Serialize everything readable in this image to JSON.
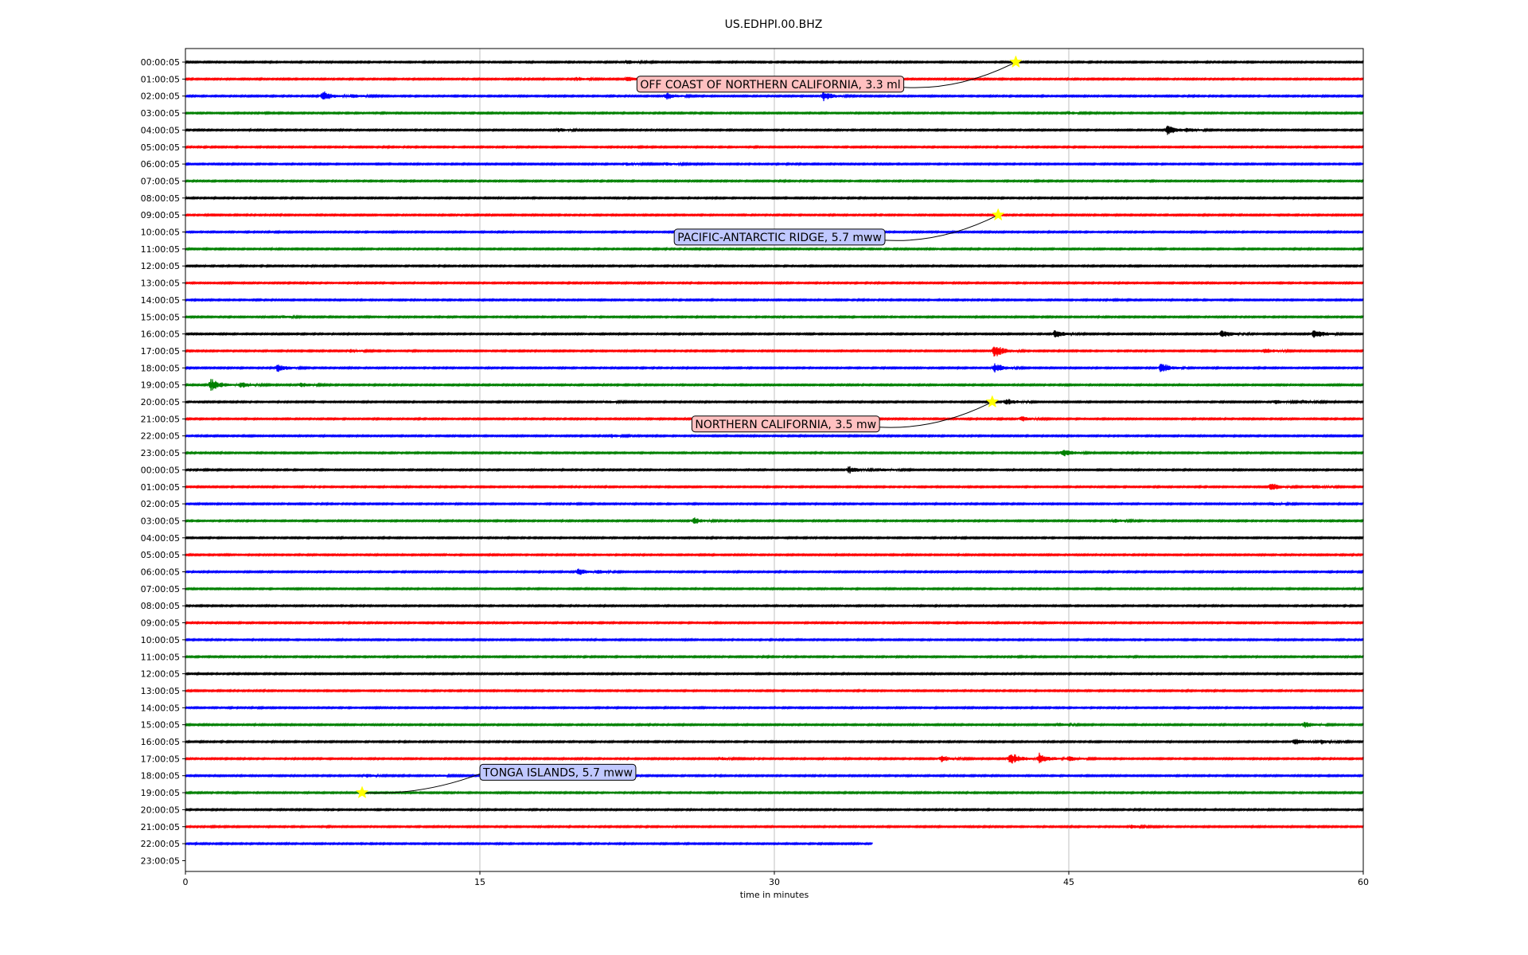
{
  "chart_data": {
    "type": "line",
    "title": "US.EDHPI.00.BHZ",
    "xlabel": "time in minutes",
    "ylabel": "",
    "xlim": [
      0,
      60
    ],
    "x_ticks": [
      "0",
      "15",
      "30",
      "45",
      "60"
    ],
    "x_tick_values": [
      0,
      15,
      30,
      45,
      60
    ],
    "grid": "vertical",
    "trace_colors": [
      "#000000",
      "#ff0000",
      "#0000ff",
      "#008000"
    ],
    "row_labels": [
      "00:00:05",
      "01:00:05",
      "02:00:05",
      "03:00:05",
      "04:00:05",
      "05:00:05",
      "06:00:05",
      "07:00:05",
      "08:00:05",
      "09:00:05",
      "10:00:05",
      "11:00:05",
      "12:00:05",
      "13:00:05",
      "14:00:05",
      "15:00:05",
      "16:00:05",
      "17:00:05",
      "18:00:05",
      "19:00:05",
      "20:00:05",
      "21:00:05",
      "22:00:05",
      "23:00:05",
      "00:00:05",
      "01:00:05",
      "02:00:05",
      "03:00:05",
      "04:00:05",
      "05:00:05",
      "06:00:05",
      "07:00:05",
      "08:00:05",
      "09:00:05",
      "10:00:05",
      "11:00:05",
      "12:00:05",
      "13:00:05",
      "14:00:05",
      "15:00:05",
      "16:00:05",
      "17:00:05",
      "18:00:05",
      "19:00:05",
      "20:00:05",
      "21:00:05",
      "22:00:05",
      "23:00:05"
    ],
    "last_trace_end_minute": 35,
    "bursts": [
      {
        "row": 0,
        "minute": 22.5,
        "amp": 0.6
      },
      {
        "row": 1,
        "minute": 20,
        "amp": 0.6
      },
      {
        "row": 1,
        "minute": 22.5,
        "amp": 0.8
      },
      {
        "row": 2,
        "minute": 7,
        "amp": 1.6
      },
      {
        "row": 2,
        "minute": 8.5,
        "amp": 0.6
      },
      {
        "row": 2,
        "minute": 24.5,
        "amp": 1.0
      },
      {
        "row": 2,
        "minute": 32.5,
        "amp": 1.4
      },
      {
        "row": 3,
        "minute": 45,
        "amp": 0.5
      },
      {
        "row": 4,
        "minute": 19,
        "amp": 0.6
      },
      {
        "row": 4,
        "minute": 50,
        "amp": 1.6
      },
      {
        "row": 4,
        "minute": 51,
        "amp": 0.6
      },
      {
        "row": 6,
        "minute": 22.5,
        "amp": 0.5
      },
      {
        "row": 6,
        "minute": 24.5,
        "amp": 0.5
      },
      {
        "row": 15,
        "minute": 5,
        "amp": 0.4
      },
      {
        "row": 16,
        "minute": 44.3,
        "amp": 1.2
      },
      {
        "row": 16,
        "minute": 52.8,
        "amp": 1.2
      },
      {
        "row": 16,
        "minute": 57.5,
        "amp": 1.6
      },
      {
        "row": 17,
        "minute": 8.4,
        "amp": 0.6
      },
      {
        "row": 17,
        "minute": 41.2,
        "amp": 2.0
      },
      {
        "row": 17,
        "minute": 55,
        "amp": 0.8
      },
      {
        "row": 18,
        "minute": 4.7,
        "amp": 1.2
      },
      {
        "row": 18,
        "minute": 41.2,
        "amp": 1.6
      },
      {
        "row": 18,
        "minute": 49.7,
        "amp": 1.6
      },
      {
        "row": 19,
        "minute": 1.3,
        "amp": 2.0
      },
      {
        "row": 19,
        "minute": 2.8,
        "amp": 0.9
      },
      {
        "row": 19,
        "minute": 5.9,
        "amp": 0.7
      },
      {
        "row": 20,
        "minute": 21.4,
        "amp": 0.5
      },
      {
        "row": 20,
        "minute": 41.8,
        "amp": 1.1
      },
      {
        "row": 20,
        "minute": 55.5,
        "amp": 0.6
      },
      {
        "row": 20,
        "minute": 57,
        "amp": 0.5
      },
      {
        "row": 21,
        "minute": 42.6,
        "amp": 0.8
      },
      {
        "row": 22,
        "minute": 21.7,
        "amp": 0.6
      },
      {
        "row": 23,
        "minute": 44.7,
        "amp": 1.2
      },
      {
        "row": 24,
        "minute": 33.8,
        "amp": 1.2
      },
      {
        "row": 24,
        "minute": 35.5,
        "amp": 0.5
      },
      {
        "row": 25,
        "minute": 55.3,
        "amp": 1.2
      },
      {
        "row": 25,
        "minute": 57.5,
        "amp": 0.6
      },
      {
        "row": 26,
        "minute": 55.3,
        "amp": 0.6
      },
      {
        "row": 27,
        "minute": 25.9,
        "amp": 1.0
      },
      {
        "row": 27,
        "minute": 47.3,
        "amp": 0.7
      },
      {
        "row": 30,
        "minute": 20,
        "amp": 1.0
      },
      {
        "row": 30,
        "minute": 21,
        "amp": 0.5
      },
      {
        "row": 39,
        "minute": 57,
        "amp": 1.0
      },
      {
        "row": 39,
        "minute": 44.5,
        "amp": 0.5
      },
      {
        "row": 40,
        "minute": 56.5,
        "amp": 1.0
      },
      {
        "row": 40,
        "minute": 57.9,
        "amp": 0.6
      },
      {
        "row": 41,
        "minute": 42,
        "amp": 2.0
      },
      {
        "row": 41,
        "minute": 43.5,
        "amp": 1.8
      },
      {
        "row": 41,
        "minute": 45,
        "amp": 0.8
      },
      {
        "row": 41,
        "minute": 38.5,
        "amp": 1.0
      },
      {
        "row": 41,
        "minute": 27.3,
        "amp": 0.4
      },
      {
        "row": 42,
        "minute": 9.2,
        "amp": 0.5
      },
      {
        "row": 42,
        "minute": 12.8,
        "amp": 0.4
      },
      {
        "row": 45,
        "minute": 48.2,
        "amp": 0.5
      }
    ],
    "annotations": [
      {
        "text": "OFF COAST OF NORTHERN CALIFORNIA, 3.3 ml",
        "star_row": 0,
        "star_minute": 42.3,
        "label_row": 1.3,
        "label_minute": 23
      },
      {
        "text": "PACIFIC-ANTARCTIC RIDGE, 5.7 mww",
        "star_row": 9,
        "star_minute": 41.4,
        "label_row": 10.3,
        "label_minute": 24.9
      },
      {
        "text": "NORTHERN CALIFORNIA, 3.5 mw",
        "star_row": 20,
        "star_minute": 41.1,
        "label_row": 21.3,
        "label_minute": 25.8
      },
      {
        "text": "TONGA ISLANDS, 5.7 mww",
        "star_row": 43,
        "star_minute": 9,
        "label_row": 41.8,
        "label_minute": 15
      }
    ],
    "annotation_box_colors": [
      "#ffc0c0",
      "#c0c8ff",
      "#ffc0c0",
      "#c0c8ff"
    ],
    "star_color": "#ffff00"
  }
}
